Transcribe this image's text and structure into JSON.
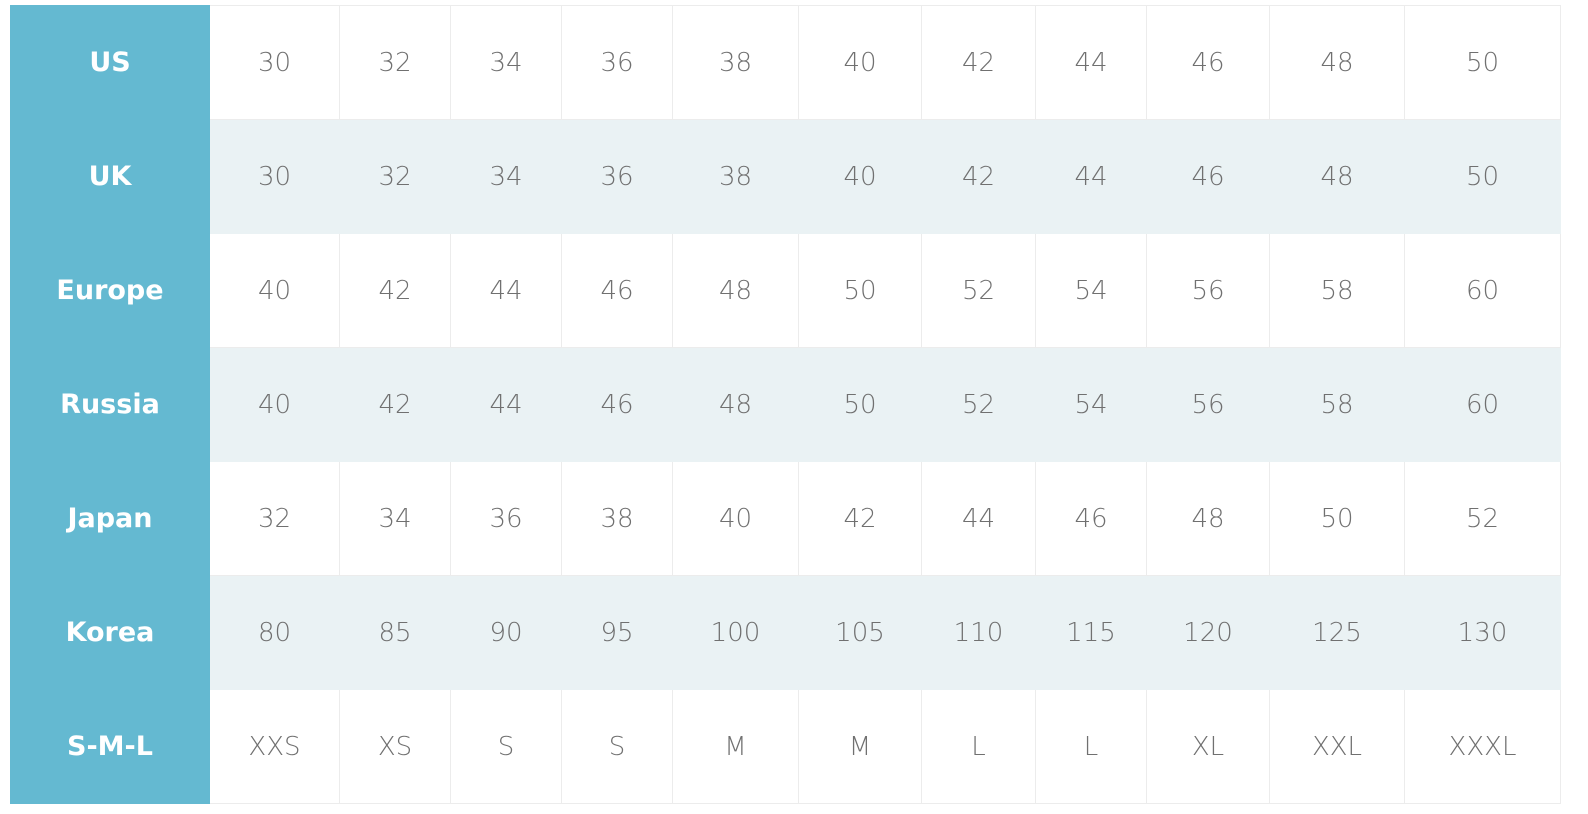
{
  "size_chart": {
    "accent_color": "#64b9d1",
    "rows": [
      {
        "label": "US",
        "values": [
          "30",
          "32",
          "34",
          "36",
          "38",
          "40",
          "42",
          "44",
          "46",
          "48",
          "50"
        ]
      },
      {
        "label": "UK",
        "values": [
          "30",
          "32",
          "34",
          "36",
          "38",
          "40",
          "42",
          "44",
          "46",
          "48",
          "50"
        ]
      },
      {
        "label": "Europe",
        "values": [
          "40",
          "42",
          "44",
          "46",
          "48",
          "50",
          "52",
          "54",
          "56",
          "58",
          "60"
        ]
      },
      {
        "label": "Russia",
        "values": [
          "40",
          "42",
          "44",
          "46",
          "48",
          "50",
          "52",
          "54",
          "56",
          "58",
          "60"
        ]
      },
      {
        "label": "Japan",
        "values": [
          "32",
          "34",
          "36",
          "38",
          "40",
          "42",
          "44",
          "46",
          "48",
          "50",
          "52"
        ]
      },
      {
        "label": "Korea",
        "values": [
          "80",
          "85",
          "90",
          "95",
          "100",
          "105",
          "110",
          "115",
          "120",
          "125",
          "130"
        ]
      },
      {
        "label": "S-M-L",
        "values": [
          "XXS",
          "XS",
          "S",
          "S",
          "M",
          "M",
          "L",
          "L",
          "XL",
          "XXL",
          "XXXL"
        ]
      }
    ]
  }
}
